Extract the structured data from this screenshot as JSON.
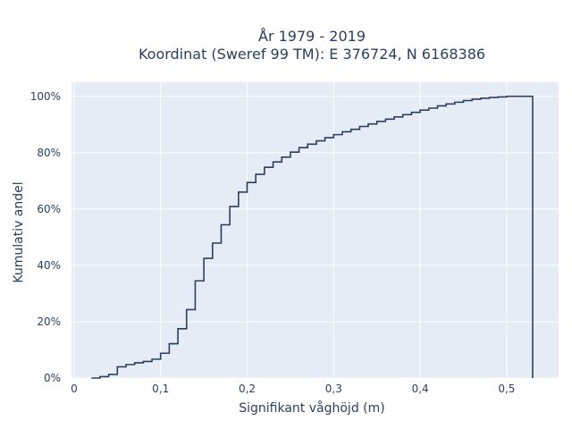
{
  "chart_data": {
    "type": "line",
    "line_shape": "step",
    "title": [
      "År 1979 - 2019",
      "Koordinat (Sweref 99 TM): E 376724, N 6168386"
    ],
    "xlabel": "Signifikant våghöjd (m)",
    "ylabel": "Kumulativ andel",
    "xlim": [
      -0.003,
      0.56
    ],
    "ylim": [
      0,
      1.05
    ],
    "xticks": [
      0,
      0.1,
      0.2,
      0.3,
      0.4,
      0.5
    ],
    "xtick_labels": [
      "0",
      "0,1",
      "0,2",
      "0,3",
      "0,4",
      "0,5"
    ],
    "yticks": [
      0,
      0.2,
      0.4,
      0.6,
      0.8,
      1.0
    ],
    "ytick_labels": [
      "0%",
      "20%",
      "40%",
      "60%",
      "80%",
      "100%"
    ],
    "grid": true,
    "colors": {
      "line": "#2a3f5f",
      "plot_bg": "#e5ecf6",
      "grid": "#ffffff"
    },
    "series": [
      {
        "x": [
          0.02,
          0.03,
          0.04,
          0.05,
          0.06,
          0.07,
          0.08,
          0.09,
          0.1,
          0.11,
          0.12,
          0.13,
          0.14,
          0.15,
          0.16,
          0.17,
          0.18,
          0.19,
          0.2,
          0.21,
          0.22,
          0.23,
          0.24,
          0.25,
          0.26,
          0.27,
          0.28,
          0.29,
          0.3,
          0.31,
          0.32,
          0.33,
          0.34,
          0.35,
          0.36,
          0.37,
          0.38,
          0.39,
          0.4,
          0.41,
          0.42,
          0.43,
          0.44,
          0.45,
          0.46,
          0.47,
          0.48,
          0.49,
          0.5,
          0.51,
          0.52,
          0.53,
          0.53
        ],
        "y": [
          0.0,
          0.005,
          0.013,
          0.04,
          0.048,
          0.054,
          0.059,
          0.067,
          0.088,
          0.122,
          0.175,
          0.243,
          0.345,
          0.425,
          0.479,
          0.544,
          0.609,
          0.66,
          0.694,
          0.723,
          0.748,
          0.767,
          0.784,
          0.802,
          0.818,
          0.83,
          0.842,
          0.853,
          0.864,
          0.874,
          0.883,
          0.893,
          0.902,
          0.911,
          0.919,
          0.927,
          0.935,
          0.943,
          0.951,
          0.958,
          0.966,
          0.973,
          0.979,
          0.985,
          0.99,
          0.993,
          0.996,
          0.998,
          1.0,
          1.0,
          1.0,
          1.0,
          0.0
        ]
      }
    ]
  }
}
